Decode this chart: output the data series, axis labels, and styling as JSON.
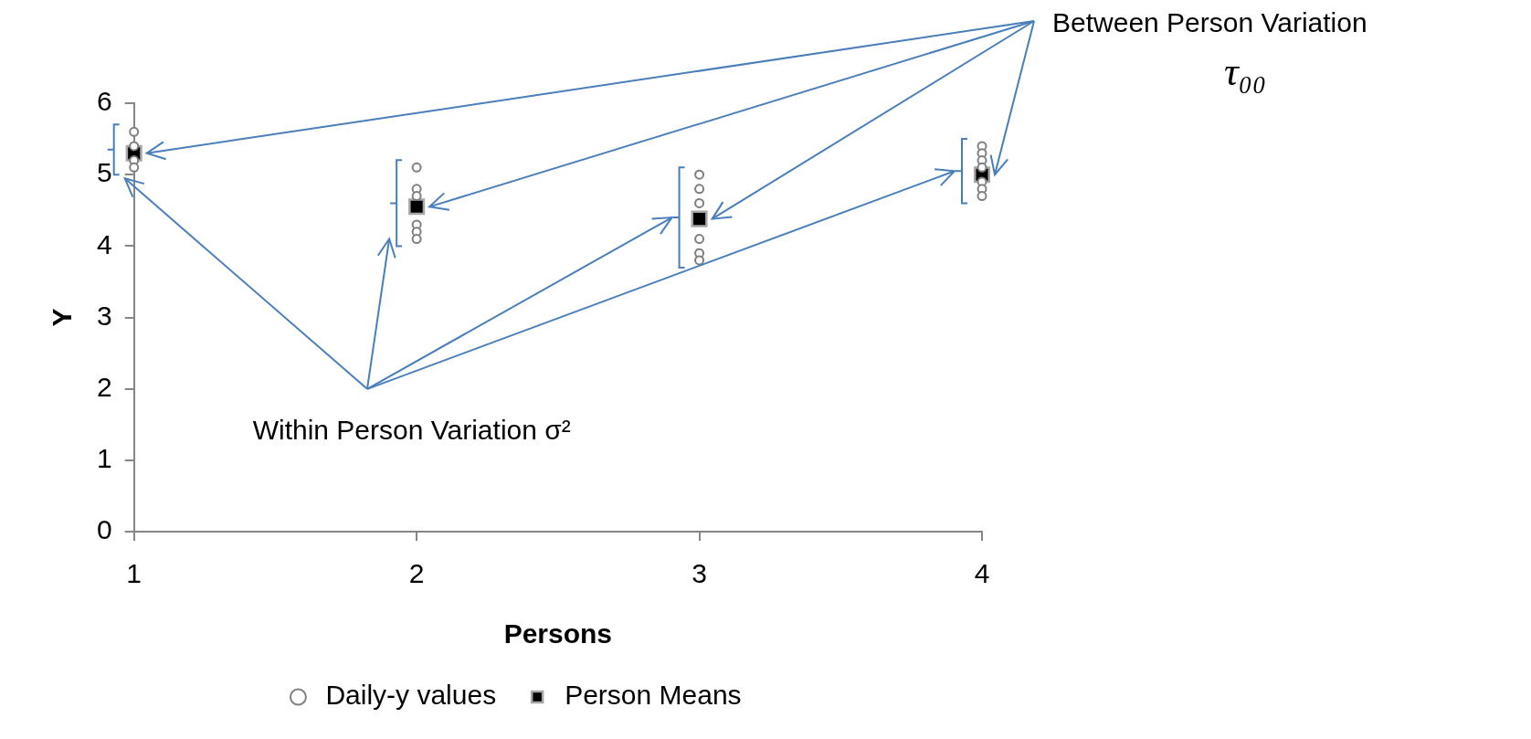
{
  "chart_data": {
    "type": "scatter",
    "xlabel": "Persons",
    "ylabel": "Y",
    "xlim": [
      1,
      4
    ],
    "xticks": [
      1,
      2,
      3,
      4
    ],
    "ylim": [
      0,
      6
    ],
    "yticks": [
      0,
      1,
      2,
      3,
      4,
      5,
      6
    ],
    "grid": false,
    "legend": "bottom",
    "annotations": [
      "Between Person Variation",
      "τ₀₀",
      "Within Person Variation σ²"
    ],
    "series": [
      {
        "name": "Daily-y values",
        "color": "#7f7f7f",
        "marker": "circle",
        "x": [
          1,
          1,
          1,
          1,
          2,
          2,
          2,
          2,
          2,
          2,
          3,
          3,
          3,
          3,
          3,
          3,
          4,
          4,
          4,
          4,
          4,
          4,
          4
        ],
        "values": [
          5.6,
          5.4,
          5.2,
          5.1,
          5.1,
          4.8,
          4.7,
          4.3,
          4.2,
          4.1,
          5.0,
          4.8,
          4.6,
          4.1,
          3.9,
          3.8,
          5.4,
          5.3,
          5.2,
          5.1,
          4.9,
          4.8,
          4.7
        ]
      },
      {
        "name": "Person Means",
        "color": "#000000",
        "marker": "square",
        "x": [
          1,
          2,
          3,
          4
        ],
        "values": [
          5.3,
          4.55,
          4.38,
          5.0
        ]
      }
    ]
  }
}
